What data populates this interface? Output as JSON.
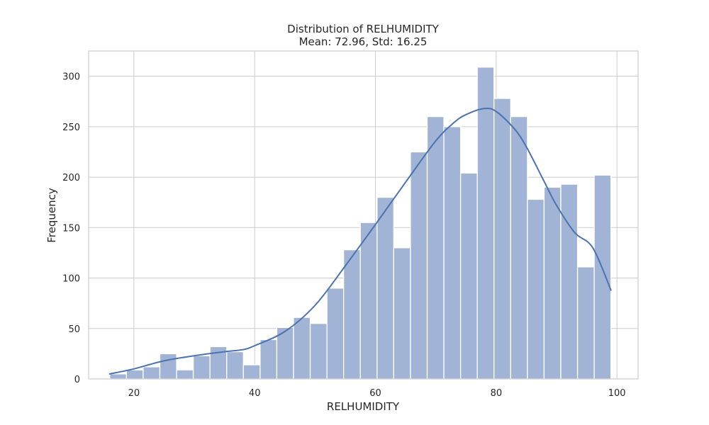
{
  "chart_data": {
    "type": "bar",
    "title": "Distribution of RELHUMIDITY",
    "subtitle": "Mean: 72.96, Std: 16.25",
    "xlabel": "RELHUMIDITY",
    "ylabel": "Frequency",
    "xlim": [
      12.5,
      103.5
    ],
    "ylim": [
      0,
      325
    ],
    "xticks": [
      20,
      40,
      60,
      80,
      100
    ],
    "yticks": [
      0,
      50,
      100,
      150,
      200,
      250,
      300
    ],
    "grid": true,
    "bins": [
      {
        "x0": 16.0,
        "x1": 18.77,
        "count": 5
      },
      {
        "x0": 18.77,
        "x1": 21.53,
        "count": 9
      },
      {
        "x0": 21.53,
        "x1": 24.3,
        "count": 12
      },
      {
        "x0": 24.3,
        "x1": 27.07,
        "count": 25
      },
      {
        "x0": 27.07,
        "x1": 29.83,
        "count": 9
      },
      {
        "x0": 29.83,
        "x1": 32.6,
        "count": 23
      },
      {
        "x0": 32.6,
        "x1": 35.37,
        "count": 32
      },
      {
        "x0": 35.37,
        "x1": 38.13,
        "count": 27
      },
      {
        "x0": 38.13,
        "x1": 40.9,
        "count": 14
      },
      {
        "x0": 40.9,
        "x1": 43.67,
        "count": 39
      },
      {
        "x0": 43.67,
        "x1": 46.43,
        "count": 51
      },
      {
        "x0": 46.43,
        "x1": 49.2,
        "count": 61
      },
      {
        "x0": 49.2,
        "x1": 51.97,
        "count": 55
      },
      {
        "x0": 51.97,
        "x1": 54.73,
        "count": 90
      },
      {
        "x0": 54.73,
        "x1": 57.5,
        "count": 128
      },
      {
        "x0": 57.5,
        "x1": 60.27,
        "count": 155
      },
      {
        "x0": 60.27,
        "x1": 63.03,
        "count": 180
      },
      {
        "x0": 63.03,
        "x1": 65.8,
        "count": 130
      },
      {
        "x0": 65.8,
        "x1": 68.57,
        "count": 225
      },
      {
        "x0": 68.57,
        "x1": 71.33,
        "count": 260
      },
      {
        "x0": 71.33,
        "x1": 74.1,
        "count": 250
      },
      {
        "x0": 74.1,
        "x1": 76.87,
        "count": 204
      },
      {
        "x0": 76.87,
        "x1": 79.63,
        "count": 309
      },
      {
        "x0": 79.63,
        "x1": 82.4,
        "count": 278
      },
      {
        "x0": 82.4,
        "x1": 85.17,
        "count": 260
      },
      {
        "x0": 85.17,
        "x1": 87.93,
        "count": 178
      },
      {
        "x0": 87.93,
        "x1": 90.7,
        "count": 190
      },
      {
        "x0": 90.7,
        "x1": 93.47,
        "count": 193
      },
      {
        "x0": 93.47,
        "x1": 96.23,
        "count": 111
      },
      {
        "x0": 96.23,
        "x1": 99.0,
        "count": 202
      }
    ],
    "kde": {
      "x": [
        16,
        20,
        25,
        30,
        35,
        38,
        40,
        45,
        50,
        55,
        60,
        65,
        70,
        73,
        75,
        78,
        80,
        83,
        85,
        88,
        90,
        93,
        96,
        99
      ],
      "y": [
        5,
        10,
        18,
        23,
        27,
        29,
        33,
        47,
        73,
        112,
        153,
        195,
        236,
        254,
        262,
        268,
        265,
        248,
        230,
        195,
        172,
        145,
        130,
        88
      ]
    },
    "colors": {
      "bar": "#a1b4d6",
      "line": "#4c72b0",
      "grid": "#cccccc",
      "text": "#262626"
    }
  }
}
